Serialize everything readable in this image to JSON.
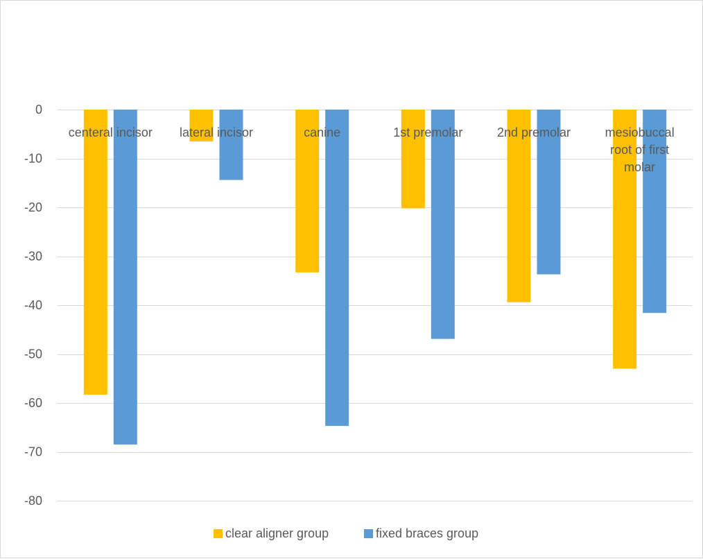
{
  "chart_data": {
    "type": "bar",
    "categories": [
      "centeral incisor",
      "lateral incisor",
      "canine",
      "1st premolar",
      "2nd premolar",
      "mesiobuccal root of first molar"
    ],
    "category_label_lines": [
      [
        "centeral incisor"
      ],
      [
        "lateral incisor"
      ],
      [
        "canine"
      ],
      [
        "1st premolar"
      ],
      [
        "2nd premolar"
      ],
      [
        "mesiobuccal",
        "root of first",
        "molar"
      ]
    ],
    "series": [
      {
        "name": "clear aligner group",
        "color": "#FFC000",
        "values": [
          -58.3,
          -6.5,
          -33.3,
          -20.2,
          -39.4,
          -53.0
        ]
      },
      {
        "name": "fixed braces group",
        "color": "#5B9BD5",
        "values": [
          -68.5,
          -14.4,
          -64.7,
          -46.9,
          -33.7,
          -41.6
        ]
      }
    ],
    "ylim": [
      -80,
      0
    ],
    "yticks": [
      0,
      -10,
      -20,
      -30,
      -40,
      -50,
      -60,
      -70,
      -80
    ],
    "ytick_labels": [
      "0",
      "-10",
      "-20",
      "-30",
      "-40",
      "-50",
      "-60",
      "-70",
      "-80"
    ],
    "title": "",
    "xlabel": "",
    "ylabel": "",
    "grid": true,
    "legend": "bottom",
    "gridline_color": "#D9D9D9"
  }
}
